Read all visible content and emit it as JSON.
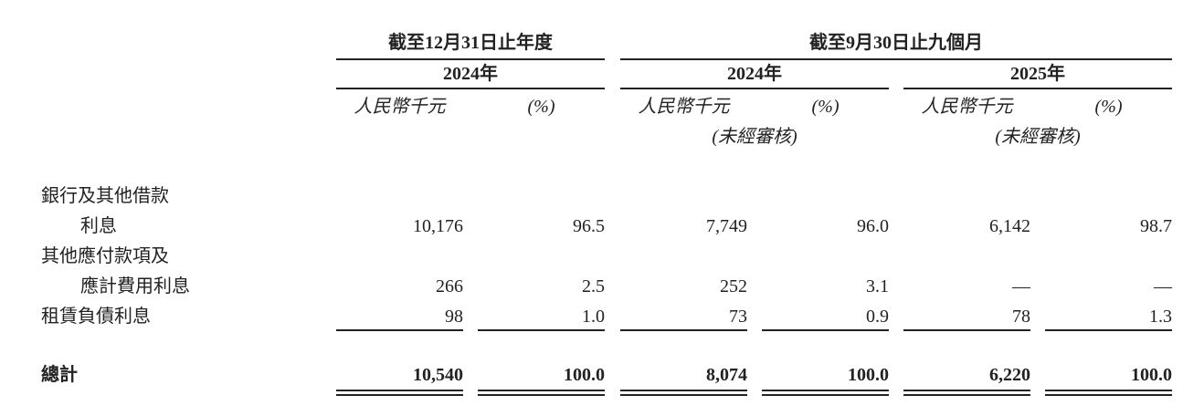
{
  "header": {
    "groups": [
      {
        "label": "截至12月31日止年度"
      },
      {
        "label": "截至9月30日止九個月"
      }
    ],
    "periods": [
      {
        "label": "2024年",
        "units": [
          "人民幣千元",
          "(%)"
        ]
      },
      {
        "label": "2024年",
        "units": [
          "人民幣千元",
          "(%)"
        ],
        "note": "(未經審核)"
      },
      {
        "label": "2025年",
        "units": [
          "人民幣千元",
          "(%)"
        ],
        "note": "(未經審核)"
      }
    ]
  },
  "table": {
    "rows": [
      {
        "label": [
          "銀行及其他借款",
          "利息"
        ],
        "values": [
          "10,176",
          "96.5",
          "7,749",
          "96.0",
          "6,142",
          "98.7"
        ]
      },
      {
        "label": [
          "其他應付款項及",
          "應計費用利息"
        ],
        "values": [
          "266",
          "2.5",
          "252",
          "3.1",
          "—",
          "—"
        ]
      },
      {
        "label": [
          "租賃負債利息"
        ],
        "values": [
          "98",
          "1.0",
          "73",
          "0.9",
          "78",
          "1.3"
        ]
      }
    ],
    "total": {
      "label": "總計",
      "values": [
        "10,540",
        "100.0",
        "8,074",
        "100.0",
        "6,220",
        "100.0"
      ]
    }
  }
}
